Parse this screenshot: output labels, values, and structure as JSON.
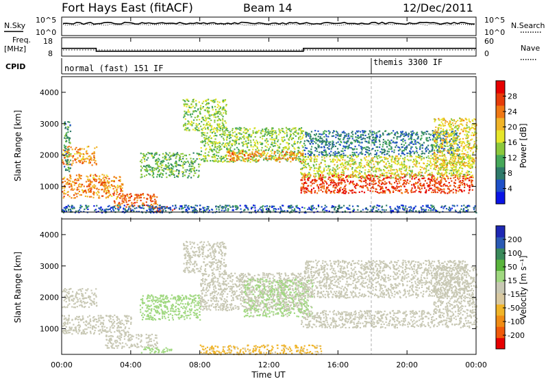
{
  "header": {
    "title": "Fort Hays East (fitACF)",
    "beam": "Beam 14",
    "date": "12/Dec/2011"
  },
  "left_labels": {
    "nsky": "N.Sky",
    "freq_line1": "Freq.",
    "freq_line2": "[MHz]",
    "cpid": "CPID"
  },
  "right_labels": {
    "nsearch": "N.Search",
    "nave": "Nave"
  },
  "noise_panel": {
    "left_ticks": [
      "10^5",
      "10^0"
    ],
    "right_ticks": [
      "10^5",
      "10^0"
    ]
  },
  "freq_panel": {
    "left_ticks": [
      "18",
      "8"
    ],
    "right_ticks": [
      "60",
      "0"
    ],
    "freq_steps": [
      [
        0,
        12.2
      ],
      [
        2,
        10.6
      ],
      [
        14,
        12.2
      ],
      [
        24,
        12.2
      ]
    ]
  },
  "cpid_panel": {
    "segments": [
      {
        "label": "normal (fast) 151 IF",
        "start_hour": 0
      },
      {
        "label": "themis 3300 IF",
        "start_hour": 18
      }
    ]
  },
  "axes": {
    "ylabel": "Slant Range [km]",
    "xlabel": "Time UT",
    "x_ticks": [
      "00:00",
      "04:00",
      "08:00",
      "12:00",
      "16:00",
      "20:00",
      "00:00"
    ],
    "y_ticks": [
      "1000",
      "2000",
      "3000",
      "4000"
    ]
  },
  "power_colorbar": {
    "label": "Power [dB]",
    "ticks": [
      "4",
      "8",
      "12",
      "16",
      "20",
      "24",
      "28"
    ],
    "colors": [
      "#0a14e6",
      "#1e50c8",
      "#2e7a6a",
      "#46a85a",
      "#8cc83c",
      "#e6e62a",
      "#f0b428",
      "#f07814",
      "#e63c0a",
      "#e60000"
    ]
  },
  "velocity_colorbar": {
    "label": "Velocity [m s⁻¹]",
    "ticks": [
      "200",
      "100",
      "50",
      "15",
      "-15",
      "-50",
      "-100",
      "-200"
    ],
    "colors": [
      "#1e28b4",
      "#2a5ab4",
      "#3a8a5a",
      "#5ab43c",
      "#a0d880",
      "#c8c8b4",
      "#d8c8a0",
      "#f0b428",
      "#f08c14",
      "#f05a0a",
      "#e60000"
    ]
  },
  "chart_data": {
    "type": "heatmap",
    "x_range_hours": [
      0,
      24
    ],
    "y_range_km": [
      180,
      4500
    ],
    "power_regions": [
      {
        "t0": 0.0,
        "t1": 2.0,
        "r0": 1700,
        "r1": 2300,
        "p": 22
      },
      {
        "t0": 0.0,
        "t1": 3.5,
        "r0": 650,
        "r1": 1400,
        "p": 22
      },
      {
        "t0": 3.0,
        "t1": 5.5,
        "r0": 350,
        "r1": 800,
        "p": 24
      },
      {
        "t0": 5.2,
        "t1": 6.5,
        "r0": 200,
        "r1": 380,
        "p": 26
      },
      {
        "t0": 0.1,
        "t1": 0.5,
        "r0": 1500,
        "r1": 3100,
        "p": 10
      },
      {
        "t0": 4.5,
        "t1": 8.0,
        "r0": 1300,
        "r1": 2100,
        "p": 12
      },
      {
        "t0": 7.0,
        "t1": 9.5,
        "r0": 2800,
        "r1": 3800,
        "p": 14
      },
      {
        "t0": 8.0,
        "t1": 14.0,
        "r0": 1800,
        "r1": 2900,
        "p": 14
      },
      {
        "t0": 9.5,
        "t1": 14.0,
        "r0": 1800,
        "r1": 2150,
        "p": 22
      },
      {
        "t0": 13.8,
        "t1": 23.8,
        "r0": 800,
        "r1": 1400,
        "p": 26
      },
      {
        "t0": 13.8,
        "t1": 23.8,
        "r0": 1300,
        "r1": 2000,
        "p": 16
      },
      {
        "t0": 14.0,
        "t1": 23.0,
        "r0": 2000,
        "r1": 2800,
        "p": 8
      },
      {
        "t0": 21.5,
        "t1": 24.0,
        "r0": 1600,
        "r1": 3200,
        "p": 18
      },
      {
        "t0": 0.0,
        "t1": 24.0,
        "r0": 180,
        "r1": 420,
        "p": 6
      }
    ],
    "velocity_regions": [
      {
        "t0": 0.0,
        "t1": 2.0,
        "r0": 1700,
        "r1": 2300,
        "v": 0
      },
      {
        "t0": 0.0,
        "t1": 4.0,
        "r0": 850,
        "r1": 1450,
        "v": 0
      },
      {
        "t0": 2.5,
        "t1": 5.5,
        "r0": 400,
        "r1": 850,
        "v": 0
      },
      {
        "t0": 4.5,
        "t1": 6.5,
        "r0": 250,
        "r1": 450,
        "v": 30
      },
      {
        "t0": 4.5,
        "t1": 8.0,
        "r0": 1300,
        "r1": 2100,
        "v": 30
      },
      {
        "t0": 7.0,
        "t1": 9.5,
        "r0": 2800,
        "r1": 3800,
        "v": 0
      },
      {
        "t0": 8.0,
        "t1": 14.0,
        "r0": 1600,
        "r1": 2800,
        "v": 0
      },
      {
        "t0": 10.5,
        "t1": 14.5,
        "r0": 1400,
        "r1": 2600,
        "v": 20
      },
      {
        "t0": 13.8,
        "t1": 24.0,
        "r0": 1050,
        "r1": 1600,
        "v": 0
      },
      {
        "t0": 14.0,
        "t1": 23.5,
        "r0": 2000,
        "r1": 3200,
        "v": 0
      },
      {
        "t0": 21.5,
        "t1": 24.0,
        "r0": 1600,
        "r1": 3000,
        "v": 0
      },
      {
        "t0": 8.0,
        "t1": 15.0,
        "r0": 200,
        "r1": 500,
        "v": -60
      }
    ]
  }
}
